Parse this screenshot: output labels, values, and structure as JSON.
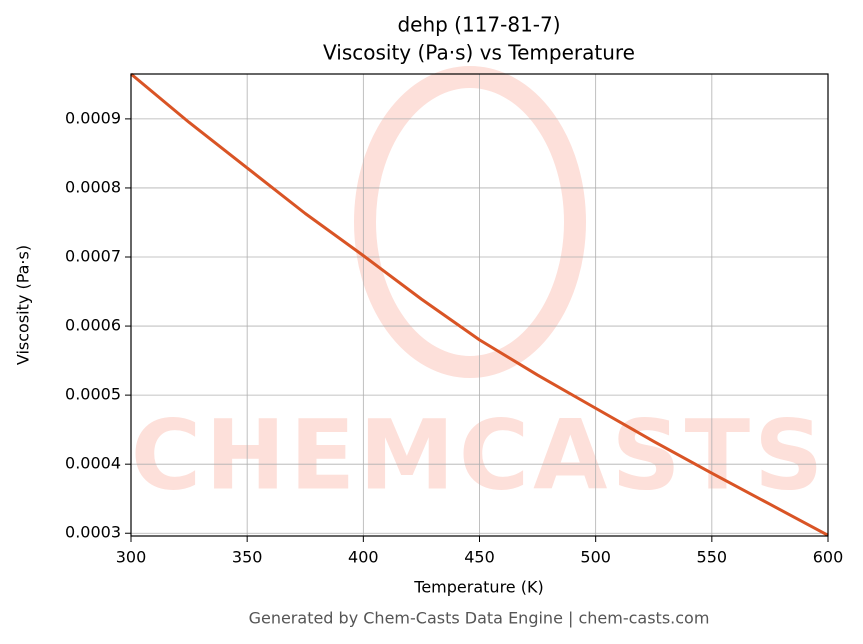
{
  "chart_data": {
    "type": "line",
    "title": "dehp (117-81-7)",
    "subtitle": "Viscosity (Pa·s) vs Temperature",
    "x_label": "Temperature (K)",
    "y_label": "Viscosity (Pa·s)",
    "footer": "Generated by Chem-Casts Data Engine | chem-casts.com",
    "watermark": "CHEMCASTS",
    "x": [
      300,
      325,
      350,
      375,
      400,
      425,
      450,
      475,
      500,
      525,
      550,
      575,
      600
    ],
    "series": [
      {
        "name": "Viscosity",
        "color": "#d95425",
        "values": [
          0.000965,
          0.000895,
          0.000829,
          0.000763,
          0.000702,
          0.000639,
          0.00058,
          0.000529,
          0.000481,
          0.000433,
          0.000387,
          0.000342,
          0.000297
        ]
      }
    ],
    "xlim": [
      300,
      600
    ],
    "ylim": [
      0.000296,
      0.000965
    ],
    "xticks": [
      300,
      350,
      400,
      450,
      500,
      550,
      600
    ],
    "yticks": [
      0.0003,
      0.0004,
      0.0005,
      0.0006,
      0.0007,
      0.0008,
      0.0009
    ],
    "grid": true
  }
}
